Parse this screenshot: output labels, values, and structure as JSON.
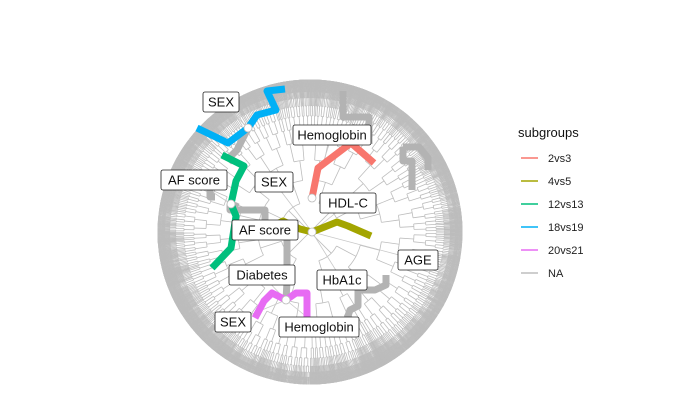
{
  "node_labels": {
    "sex_top": "SEX",
    "hemoglobin_top": "Hemoglobin",
    "af_score_left": "AF score",
    "sex_mid": "SEX",
    "hdl_c": "HDL-C",
    "af_score_center": "AF score",
    "age": "AGE",
    "diabetes": "Diabetes",
    "hba1c": "HbA1c",
    "sex_bottom": "SEX",
    "hemoglobin_bottom": "Hemoglobin"
  },
  "legend": {
    "title": "subgroups",
    "items": [
      {
        "label": "2vs3",
        "color": "#F8766D"
      },
      {
        "label": "4vs5",
        "color": "#A3A500"
      },
      {
        "label": "12vs13",
        "color": "#00BF7D"
      },
      {
        "label": "18vs19",
        "color": "#00B0F6"
      },
      {
        "label": "20vs21",
        "color": "#E76BF3"
      },
      {
        "label": "NA",
        "color": "#BEBEBE"
      }
    ]
  },
  "colors": {
    "tree_line": "#BDBDBD",
    "highlight_gray": "#B3B3B3"
  }
}
